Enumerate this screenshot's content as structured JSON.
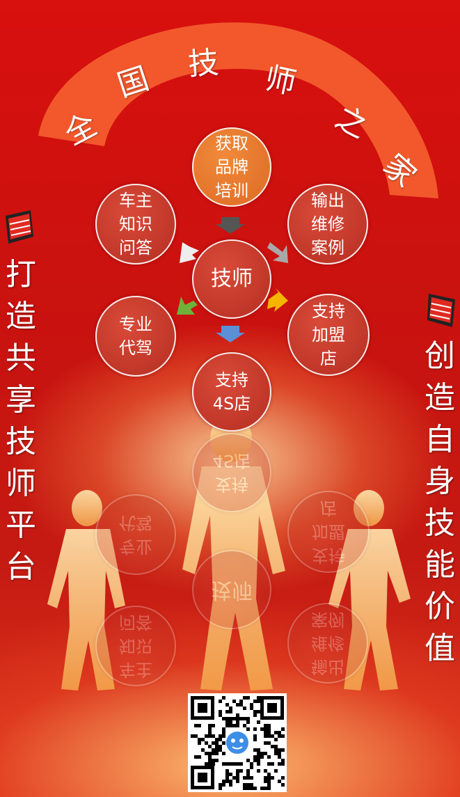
{
  "banner": {
    "chars": [
      "全",
      "国",
      "技",
      "师",
      "之",
      "家"
    ]
  },
  "center": {
    "label": "技师"
  },
  "nodes": [
    {
      "key": "brand-training",
      "label": "获取\n品牌\n培训"
    },
    {
      "key": "repair-cases",
      "label": "输出\n维修\n案例"
    },
    {
      "key": "franchise",
      "label": "支持\n加盟\n店"
    },
    {
      "key": "4s-store",
      "label": "支持\n4S店"
    },
    {
      "key": "driving",
      "label": "专业\n代驾"
    },
    {
      "key": "owner-qa",
      "label": "车主\n知识\n问答"
    }
  ],
  "left_slogan": "打造共享技师平台",
  "right_slogan": "创造自身技能价值",
  "colors": {
    "background": "#d0120f",
    "banner_arc": "#f2582c",
    "arrow_gray": "#555555",
    "arrow_light": "#a8a8a8",
    "arrow_yellow": "#f5b400",
    "arrow_blue": "#5b8fd6",
    "arrow_green": "#6fb23a",
    "arrow_white": "#eeeeee"
  },
  "icons": [
    "megaphone-icon",
    "qr-code",
    "mascot-icon"
  ]
}
